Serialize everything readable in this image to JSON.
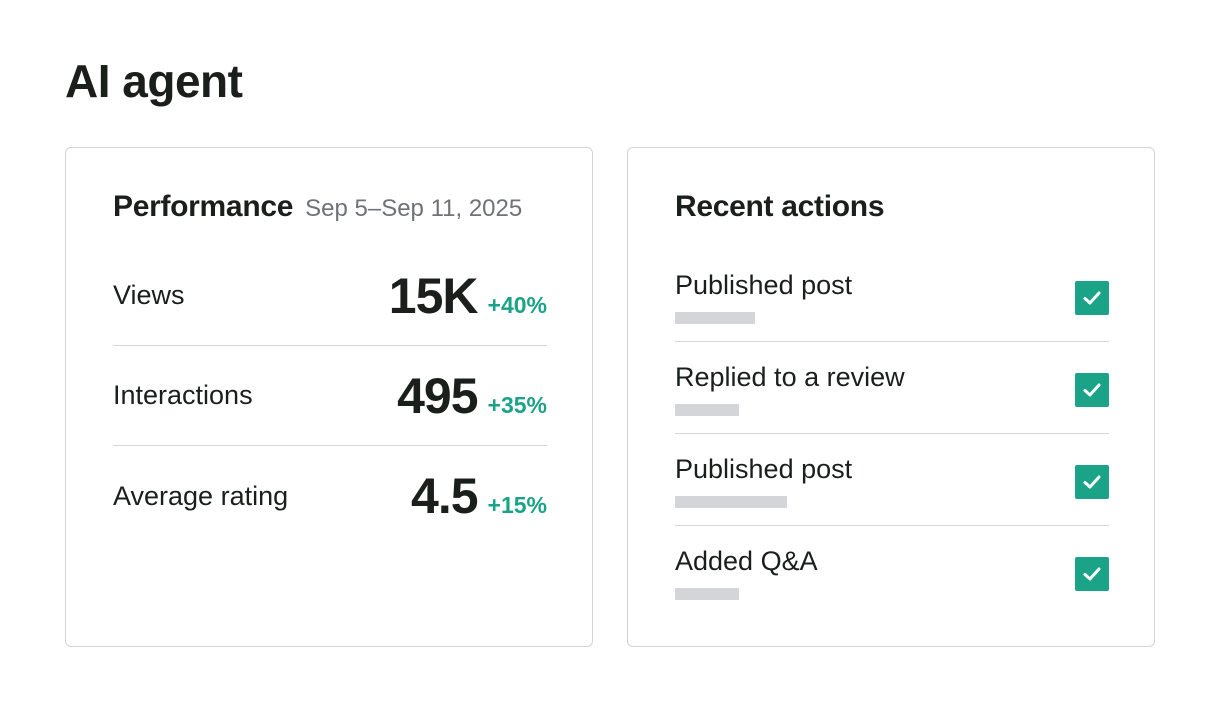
{
  "page": {
    "title": "AI agent"
  },
  "performance": {
    "title": "Performance",
    "date_range": "Sep 5–Sep 11, 2025",
    "metrics": [
      {
        "label": "Views",
        "value": "15K",
        "delta": "+40%"
      },
      {
        "label": "Interactions",
        "value": "495",
        "delta": "+35%"
      },
      {
        "label": "Average rating",
        "value": "4.5",
        "delta": "+15%"
      }
    ]
  },
  "recent_actions": {
    "title": "Recent actions",
    "items": [
      {
        "label": "Published post",
        "completed": true,
        "icon": "check-icon"
      },
      {
        "label": "Replied to a review",
        "completed": true,
        "icon": "check-icon"
      },
      {
        "label": "Published post",
        "completed": true,
        "icon": "check-icon"
      },
      {
        "label": "Added Q&A",
        "completed": true,
        "icon": "check-icon"
      }
    ]
  },
  "colors": {
    "accent_green": "#1aa386",
    "text_primary": "#1b1f1c",
    "text_secondary": "#6f7378",
    "divider": "#d2d4d6",
    "placeholder_bar": "#d3d5d8"
  }
}
